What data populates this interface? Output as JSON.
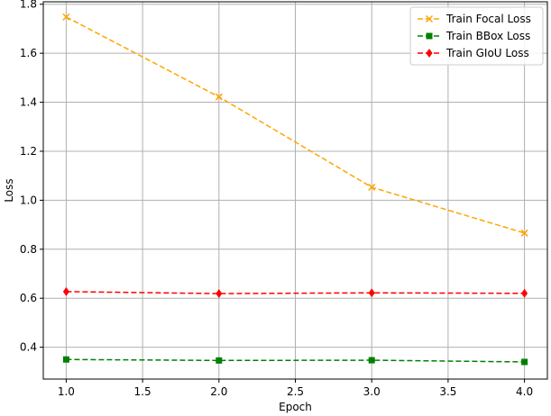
{
  "chart_data": {
    "type": "line",
    "title": "",
    "xlabel": "Epoch",
    "ylabel": "Loss",
    "xlim": [
      0.85,
      4.15
    ],
    "ylim": [
      0.27,
      1.81
    ],
    "xticks": [
      1.0,
      1.5,
      2.0,
      2.5,
      3.0,
      3.5,
      4.0
    ],
    "xtick_labels": [
      "1.0",
      "1.5",
      "2.0",
      "2.5",
      "3.0",
      "3.5",
      "4.0"
    ],
    "yticks": [
      0.4,
      0.6,
      0.8,
      1.0,
      1.2,
      1.4,
      1.6,
      1.8
    ],
    "ytick_labels": [
      "0.4",
      "0.6",
      "0.8",
      "1.0",
      "1.2",
      "1.4",
      "1.6",
      "1.8"
    ],
    "grid": true,
    "legend_position": "top-right",
    "x": [
      1,
      2,
      3,
      4
    ],
    "series": [
      {
        "name": "Train Focal Loss",
        "values": [
          1.748,
          1.422,
          1.053,
          0.866
        ],
        "color": "#FFA500",
        "marker": "x",
        "line_style": "dashed"
      },
      {
        "name": "Train BBox Loss",
        "values": [
          0.35,
          0.346,
          0.347,
          0.34
        ],
        "color": "#008000",
        "marker": "square",
        "line_style": "dashed"
      },
      {
        "name": "Train GIoU Loss",
        "values": [
          0.627,
          0.619,
          0.622,
          0.62
        ],
        "color": "#FF0000",
        "marker": "diamond",
        "line_style": "dashed"
      }
    ]
  }
}
